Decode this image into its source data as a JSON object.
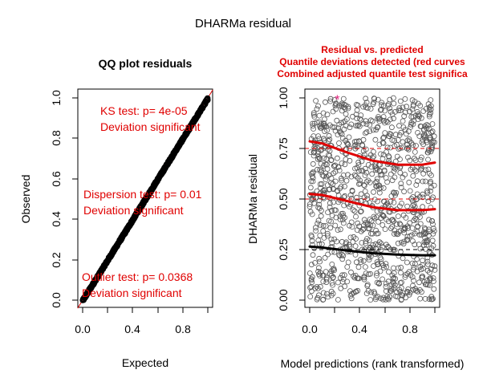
{
  "page": {
    "title": "DHARMa residual"
  },
  "chart_data": [
    {
      "type": "scatter",
      "title": "QQ plot residuals",
      "xlabel": "Expected",
      "ylabel": "Observed",
      "xlim": [
        0,
        1
      ],
      "ylim": [
        0,
        1
      ],
      "x_ticks": [
        "0.0",
        "0.4",
        "0.8"
      ],
      "y_ticks": [
        "0.0",
        "0.2",
        "0.4",
        "0.6",
        "0.8",
        "1.0"
      ],
      "reference_line": {
        "from": [
          0,
          0
        ],
        "to": [
          1,
          1
        ],
        "color": "#e00000"
      },
      "points": "dense quantile points along the 1:1 diagonal from (0,0) to (1,1)",
      "annotations": [
        {
          "lines": [
            "KS test: p= 4e-05",
            "Deviation  significant"
          ],
          "color": "#e00000"
        },
        {
          "lines": [
            "Dispersion test: p= 0.01",
            "Deviation  significant"
          ],
          "color": "#e00000"
        },
        {
          "lines": [
            "Outlier test: p= 0.0368",
            "Deviation  significant"
          ],
          "color": "#e00000"
        }
      ]
    },
    {
      "type": "scatter",
      "title_lines": [
        "Residual vs. predicted",
        "Quantile deviations detected (red curves",
        "Combined adjusted quantile test significa"
      ],
      "title_color": "#e00000",
      "xlabel": "Model predictions (rank transformed)",
      "ylabel": "DHARMa residual",
      "xlim": [
        0,
        1
      ],
      "ylim": [
        0,
        1
      ],
      "x_ticks": [
        "0.0",
        "0.4",
        "0.8"
      ],
      "y_ticks": [
        "0.00",
        "0.25",
        "0.50",
        "0.75",
        "1.00"
      ],
      "reference_lines": [
        {
          "y": 0.25,
          "color": "#000000",
          "dash": true
        },
        {
          "y": 0.5,
          "color": "#e00000",
          "dash": true
        },
        {
          "y": 0.75,
          "color": "#e00000",
          "dash": true
        }
      ],
      "quantile_curves": [
        {
          "quantile": 0.25,
          "color": "#000000",
          "x": [
            0,
            0.1,
            0.3,
            0.5,
            0.7,
            0.9,
            1.0
          ],
          "y": [
            0.265,
            0.26,
            0.245,
            0.232,
            0.225,
            0.222,
            0.222
          ]
        },
        {
          "quantile": 0.5,
          "color": "#e00000",
          "x": [
            0,
            0.1,
            0.3,
            0.5,
            0.7,
            0.9,
            1.0
          ],
          "y": [
            0.525,
            0.52,
            0.49,
            0.46,
            0.445,
            0.445,
            0.45
          ]
        },
        {
          "quantile": 0.75,
          "color": "#e00000",
          "x": [
            0,
            0.1,
            0.3,
            0.5,
            0.7,
            0.9,
            1.0
          ],
          "y": [
            0.785,
            0.775,
            0.73,
            0.69,
            0.67,
            0.67,
            0.68
          ]
        }
      ],
      "outlier_marker": {
        "x": 0.22,
        "y": 0.995,
        "color": "#e0207a",
        "symbol": "*"
      },
      "points": "approximately uniform residuals scattered over [0,1] x [0,1], open black circles"
    }
  ]
}
